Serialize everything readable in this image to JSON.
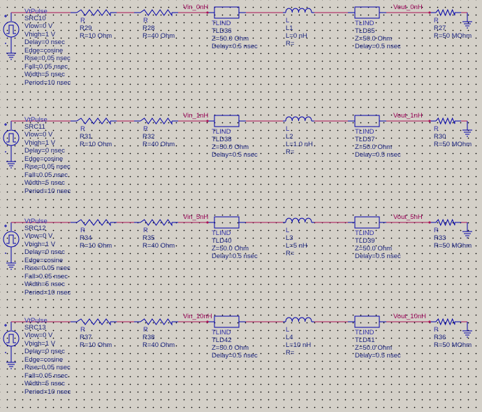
{
  "rows": [
    {
      "source": {
        "type": "VtPulse",
        "name": "SRC10",
        "lines": [
          "Vlow=0 V",
          "Vhigh=1 V",
          "Delay=0 nsec",
          "Edge=cosine",
          "Rise=0.05 nsec",
          "Fall=0.05 nsec",
          "Width=5 nsec",
          "Period=10 nsec"
        ]
      },
      "r1": {
        "type": "R",
        "name": "R29",
        "value": "R=10 Ohm"
      },
      "r2": {
        "type": "R",
        "name": "R28",
        "value": "R=40 Ohm"
      },
      "vin_label": "Vin_0nH",
      "tl1": {
        "type": "TLIND",
        "name": "TLD36",
        "z": "Z=50.0 Ohm",
        "delay": "Delay=0.5 nsec"
      },
      "ind": {
        "type": "L",
        "name": "L1",
        "value": "L=0 nH",
        "r": "R="
      },
      "tl2": {
        "type": "TLIND",
        "name": "TLD35",
        "z": "Z=50.0 Ohm",
        "delay": "Delay=0.5 nsec"
      },
      "vout_label": "Vout_0nH",
      "rload": {
        "type": "R",
        "name": "R27",
        "value": "R=50 MOhm"
      }
    },
    {
      "source": {
        "type": "VtPulse",
        "name": "SRC11",
        "lines": [
          "Vlow=0 V",
          "Vhigh=1 V",
          "Delay=0 nsec",
          "Edge=cosine",
          "Rise=0.05 nsec",
          "Fall=0.05 nsec",
          "Width=5 nsec",
          "Period=10 nsec"
        ]
      },
      "r1": {
        "type": "R",
        "name": "R31",
        "value": "R=10 Ohm"
      },
      "r2": {
        "type": "R",
        "name": "R32",
        "value": "R=40 Ohm"
      },
      "vin_label": "Vin_1nH",
      "tl1": {
        "type": "TLIND",
        "name": "TLD38",
        "z": "Z=50.0 Ohm",
        "delay": "Delay=0.5 nsec"
      },
      "ind": {
        "type": "L",
        "name": "L2",
        "value": "L=1.0 nH",
        "r": "R="
      },
      "tl2": {
        "type": "TLIND",
        "name": "TLD37",
        "z": "Z=50.0 Ohm",
        "delay": "Delay=0.5 nsec"
      },
      "vout_label": "Vout_1nH",
      "rload": {
        "type": "R",
        "name": "R30",
        "value": "R=50 MOhm"
      }
    },
    {
      "source": {
        "type": "VtPulse",
        "name": "SRC12",
        "lines": [
          "Vlow=0 V",
          "Vhigh=1 V",
          "Delay=0 nsec",
          "Edge=cosine",
          "Rise=0.05 nsec",
          "Fall=0.05 nsec",
          "Width=5 nsec",
          "Period=10 nsec"
        ]
      },
      "r1": {
        "type": "R",
        "name": "R34",
        "value": "R=10 Ohm"
      },
      "r2": {
        "type": "R",
        "name": "R35",
        "value": "R=40 Ohm"
      },
      "vin_label": "Vin_5nH",
      "tl1": {
        "type": "TLIND",
        "name": "TLD40",
        "z": "Z=50.0 Ohm",
        "delay": "Delay=0.5 nsec"
      },
      "ind": {
        "type": "L",
        "name": "L3",
        "value": "L=5 nH",
        "r": "R="
      },
      "tl2": {
        "type": "TLIND",
        "name": "TLD39",
        "z": "Z=50.0 Ohm",
        "delay": "Delay=0.5 nsec"
      },
      "vout_label": "Vout_5nH",
      "rload": {
        "type": "R",
        "name": "R33",
        "value": "R=50 MOhm"
      }
    },
    {
      "source": {
        "type": "VtPulse",
        "name": "SRC13",
        "lines": [
          "Vlow=0 V",
          "Vhigh=1 V",
          "Delay=0 nsec",
          "Edge=cosine",
          "Rise=0.05 nsec",
          "Fall=0.05 nsec",
          "Width=5 nsec",
          "Period=10 nsec"
        ]
      },
      "r1": {
        "type": "R",
        "name": "R37",
        "value": "R=10 Ohm"
      },
      "r2": {
        "type": "R",
        "name": "R38",
        "value": "R=40 Ohm"
      },
      "vin_label": "Vin_10nH",
      "tl1": {
        "type": "TLIND",
        "name": "TLD42",
        "z": "Z=50.0 Ohm",
        "delay": "Delay=0.5 nsec"
      },
      "ind": {
        "type": "L",
        "name": "L4",
        "value": "L=10 nH",
        "r": "R="
      },
      "tl2": {
        "type": "TLIND",
        "name": "TLD41",
        "z": "Z=50.0 Ohm",
        "delay": "Delay=0.5 nsec"
      },
      "vout_label": "Vout_10nH",
      "rload": {
        "type": "R",
        "name": "R36",
        "value": "R=50 MOhm"
      }
    }
  ],
  "colors": {
    "background": "#d4d0c8",
    "wire": "#aa1155",
    "component": "#0000aa",
    "text": "#1a237e",
    "net_label": "#990055"
  }
}
